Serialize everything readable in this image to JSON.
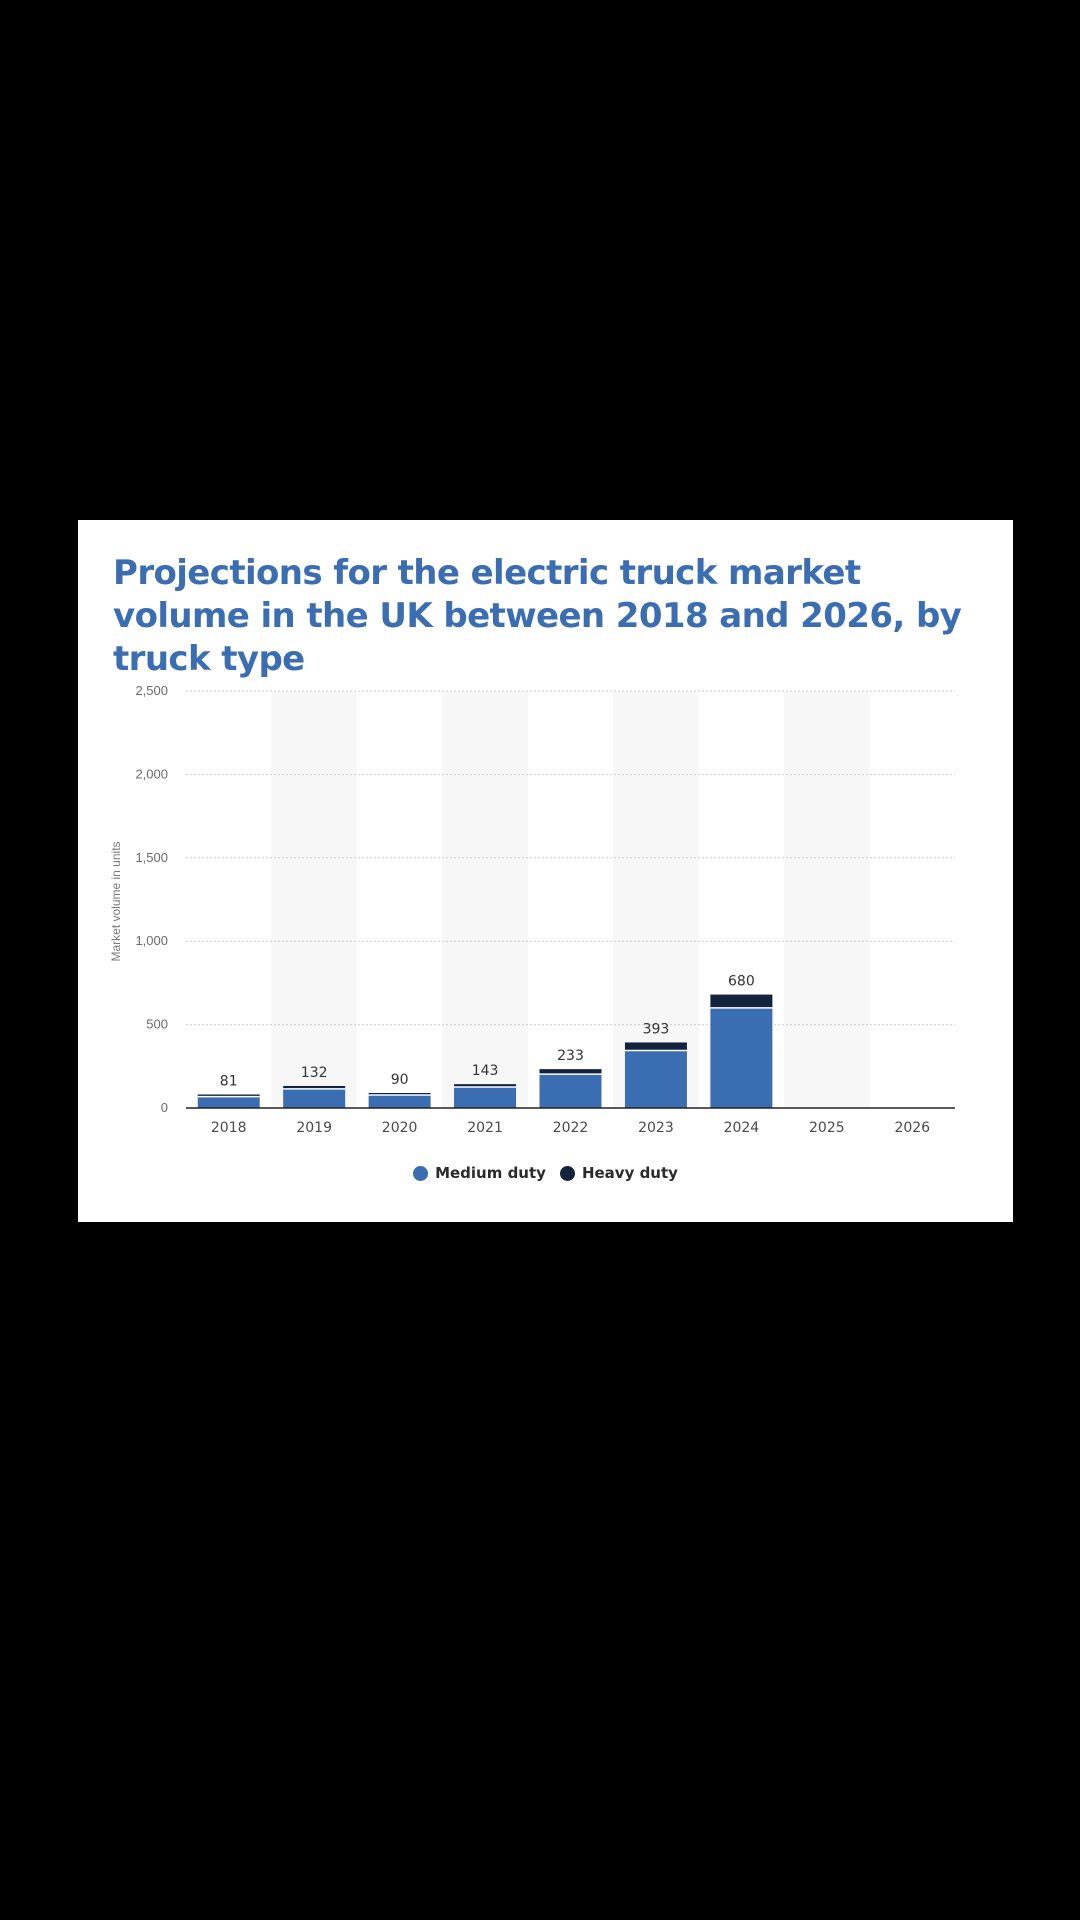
{
  "title": "Projections for the electric truck market volume in the UK between 2018 and 2026, by truck type",
  "colors": {
    "medium": "#3b6db3",
    "heavy": "#14233d",
    "grid": "#c9ced6",
    "band": "#f7f7f7",
    "axis": "#222222"
  },
  "chart_data": {
    "type": "bar",
    "stacked": true,
    "categories": [
      "2018",
      "2019",
      "2020",
      "2021",
      "2022",
      "2023",
      "2024",
      "2025",
      "2026"
    ],
    "series": [
      {
        "name": "Medium duty",
        "values": [
          68,
          115,
          78,
          126,
          203,
          345,
          600,
          0,
          0
        ]
      },
      {
        "name": "Heavy duty",
        "values": [
          13,
          17,
          12,
          17,
          30,
          48,
          80,
          0,
          0
        ]
      }
    ],
    "totals": [
      81,
      132,
      90,
      143,
      233,
      393,
      680,
      null,
      null
    ],
    "total_labels": [
      "81",
      "132",
      "90",
      "143",
      "233",
      "393",
      "680",
      "",
      ""
    ],
    "ylabel": "Market volume in units",
    "ylim": [
      0,
      2500
    ],
    "yticks": [
      0,
      500,
      1000,
      1500,
      2000,
      2500
    ],
    "ytick_labels": [
      "0",
      "500",
      "1,000",
      "1,500",
      "2,000",
      "2,500"
    ],
    "grid": true,
    "legend_position": "bottom"
  }
}
